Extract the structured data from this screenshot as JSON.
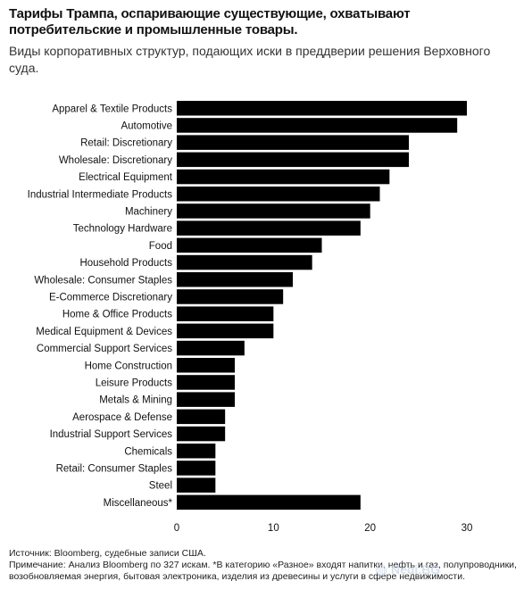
{
  "header": {
    "title": "Тарифы Трампа, оспаривающие существующие, охватывают потребительские и промышленные товары.",
    "subtitle": "Виды корпоративных структур, подающих иски в преддверии решения Верховного суда."
  },
  "chart_data": {
    "type": "bar",
    "orientation": "horizontal",
    "categories": [
      "Apparel & Textile Products",
      "Automotive",
      "Retail: Discretionary",
      "Wholesale: Discretionary",
      "Electrical Equipment",
      "Industrial Intermediate Products",
      "Machinery",
      "Technology Hardware",
      "Food",
      "Household Products",
      "Wholesale: Consumer Staples",
      "E-Commerce Discretionary",
      "Home & Office Products",
      "Medical Equipment & Devices",
      "Commercial Support Services",
      "Home Construction",
      "Leisure Products",
      "Metals & Mining",
      "Aerospace & Defense",
      "Industrial Support Services",
      "Chemicals",
      "Retail: Consumer Staples",
      "Steel",
      "Miscellaneous*"
    ],
    "values": [
      30,
      29,
      24,
      24,
      22,
      21,
      20,
      19,
      15,
      14,
      12,
      11,
      10,
      10,
      7,
      6,
      6,
      6,
      5,
      5,
      4,
      4,
      4,
      19
    ],
    "xlim": [
      0,
      32
    ],
    "xticks": [
      "0",
      "10",
      "20",
      "30"
    ],
    "bar_color": "#000000",
    "grid": false
  },
  "footer": {
    "source": "Источник: Bloomberg, судебные записи США.",
    "note": "Примечание: Анализ Bloomberg по 327 искам. *В категорию «Разное» входят напитки, нефть и газ, полупроводники, возобновляемая энергия, бытовая электроника, изделия из древесины и услуги в сфере недвижимости."
  },
  "watermark": {
    "text": "Nedi.BG",
    "icon": "globe-icon"
  }
}
